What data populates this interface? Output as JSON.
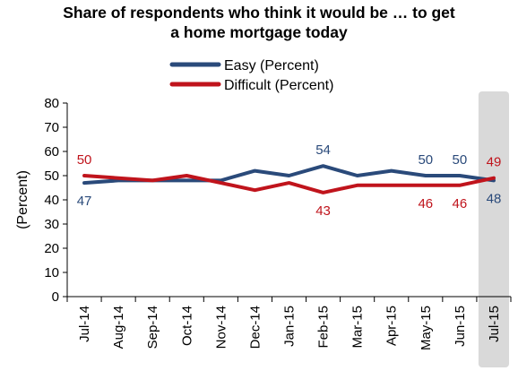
{
  "chart_data": {
    "type": "line",
    "title_line1": "Share of respondents who think it would be … to get",
    "title_line2": "a home mortgage today",
    "ylabel": "(Percent)",
    "ylim": [
      0,
      80
    ],
    "yticks": [
      "0",
      "10",
      "20",
      "30",
      "40",
      "50",
      "60",
      "70",
      "80"
    ],
    "categories": [
      "Jul-14",
      "Aug-14",
      "Sep-14",
      "Oct-14",
      "Nov-14",
      "Dec-14",
      "Jan-15",
      "Feb-15",
      "Mar-15",
      "Apr-15",
      "May-15",
      "Jun-15",
      "Jul-15"
    ],
    "series": [
      {
        "name": "Easy (Percent)",
        "color": "#2a4a7a",
        "values": [
          47,
          48,
          48,
          48,
          48,
          52,
          50,
          54,
          50,
          52,
          50,
          50,
          48
        ]
      },
      {
        "name": "Difficult (Percent)",
        "color": "#c0141c",
        "values": [
          50,
          49,
          48,
          50,
          47,
          44,
          47,
          43,
          46,
          46,
          46,
          46,
          49
        ]
      }
    ],
    "data_labels": [
      {
        "series": 0,
        "index": 0,
        "text": "47",
        "pos": "below"
      },
      {
        "series": 1,
        "index": 0,
        "text": "50",
        "pos": "above"
      },
      {
        "series": 0,
        "index": 7,
        "text": "54",
        "pos": "above"
      },
      {
        "series": 1,
        "index": 7,
        "text": "43",
        "pos": "below"
      },
      {
        "series": 0,
        "index": 10,
        "text": "50",
        "pos": "above"
      },
      {
        "series": 1,
        "index": 10,
        "text": "46",
        "pos": "below"
      },
      {
        "series": 0,
        "index": 11,
        "text": "50",
        "pos": "above"
      },
      {
        "series": 1,
        "index": 11,
        "text": "46",
        "pos": "below"
      },
      {
        "series": 0,
        "index": 12,
        "text": "48",
        "pos": "below"
      },
      {
        "series": 1,
        "index": 12,
        "text": "49",
        "pos": "above"
      }
    ],
    "highlight_category": "Jul-15",
    "highlight_color": "#d9d9d9",
    "legend_position": "top-center",
    "grid": false
  }
}
